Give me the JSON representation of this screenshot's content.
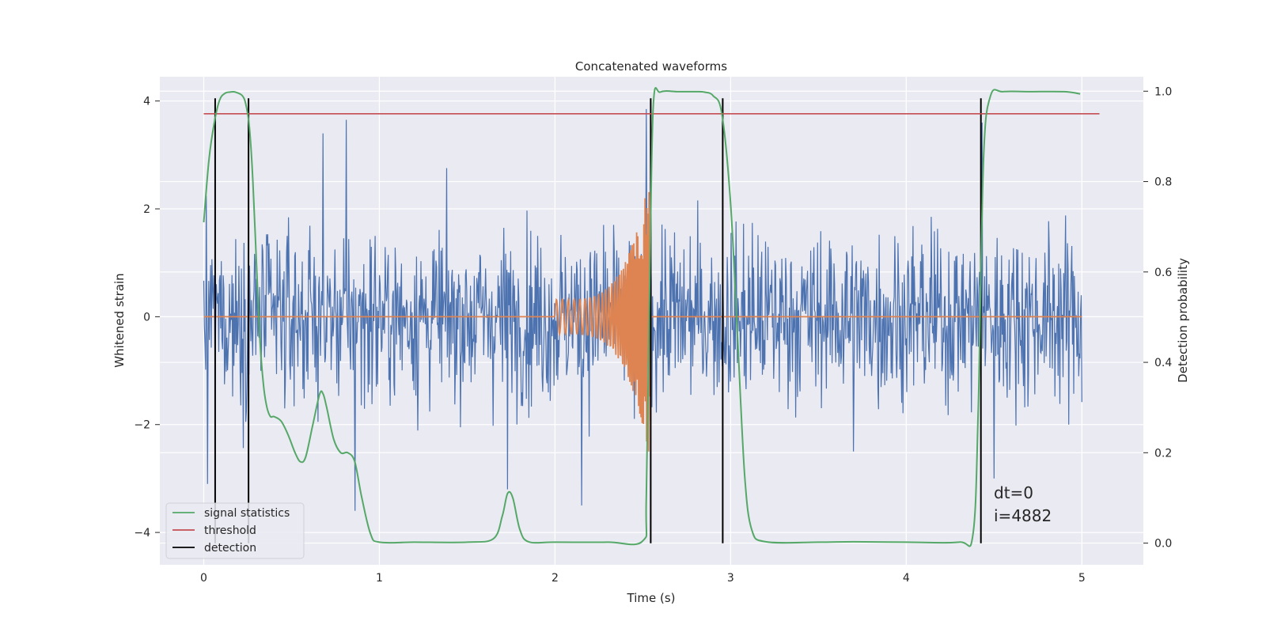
{
  "chart_data": {
    "type": "line",
    "title": "Concatenated waveforms",
    "xlabel": "Time (s)",
    "ylabel": "Whitened strain",
    "y2label": "Detection probability",
    "xlim": [
      -0.25,
      5.35
    ],
    "ylim": [
      -4.6,
      4.45
    ],
    "y2lim": [
      -0.048,
      1.032
    ],
    "xticks": [
      0,
      1,
      2,
      3,
      4,
      5
    ],
    "xtick_labels": [
      "0",
      "1",
      "2",
      "3",
      "4",
      "5"
    ],
    "yticks": [
      -4,
      -2,
      0,
      2,
      4
    ],
    "ytick_labels": [
      "−4",
      "−2",
      "0",
      "2",
      "4"
    ],
    "y2ticks": [
      0.0,
      0.2,
      0.4,
      0.6,
      0.8,
      1.0
    ],
    "y2tick_labels": [
      "0.0",
      "0.2",
      "0.4",
      "0.6",
      "0.8",
      "1.0"
    ],
    "grid": true,
    "legend_position": "lower-left",
    "series": [
      {
        "name": "",
        "kind": "noise",
        "axis": "left",
        "color": "#4c72b0",
        "x_range": [
          0,
          5
        ],
        "envelope": 2.3,
        "peaks": [
          [
            0.81,
            3.65
          ],
          [
            0.68,
            3.4
          ],
          [
            2.52,
            3.85
          ],
          [
            4.43,
            3.6
          ],
          [
            0.02,
            -3.1
          ],
          [
            0.86,
            -3.6
          ],
          [
            2.15,
            -3.5
          ],
          [
            1.73,
            -3.2
          ],
          [
            4.5,
            -3.0
          ],
          [
            3.7,
            -2.5
          ]
        ]
      },
      {
        "name": "",
        "kind": "chirp",
        "axis": "left",
        "color": "#dd8452",
        "x_range": [
          0,
          5
        ],
        "chirp_start": 2.0,
        "chirp_merge": 2.545,
        "chirp_peak": 2.7
      },
      {
        "name": "signal statistics",
        "axis": "right",
        "color": "#55a868",
        "x": [
          0.0,
          0.03,
          0.06,
          0.09,
          0.12,
          0.15,
          0.18,
          0.22,
          0.24,
          0.26,
          0.28,
          0.3,
          0.32,
          0.34,
          0.36,
          0.38,
          0.4,
          0.44,
          0.48,
          0.52,
          0.55,
          0.58,
          0.62,
          0.66,
          0.68,
          0.7,
          0.74,
          0.78,
          0.82,
          0.86,
          0.9,
          0.95,
          1.0,
          1.2,
          1.5,
          1.65,
          1.7,
          1.73,
          1.76,
          1.8,
          1.85,
          2.0,
          2.3,
          2.5,
          2.52,
          2.54,
          2.56,
          2.6,
          2.7,
          2.8,
          2.85,
          2.9,
          2.95,
          3.0,
          3.04,
          3.08,
          3.12,
          3.2,
          3.5,
          3.7,
          4.0,
          4.3,
          4.38,
          4.41,
          4.44,
          4.48,
          4.55,
          4.7,
          4.9,
          4.99
        ],
        "values": [
          0.71,
          0.85,
          0.93,
          0.98,
          0.995,
          0.998,
          0.998,
          0.99,
          0.97,
          0.92,
          0.8,
          0.62,
          0.45,
          0.35,
          0.3,
          0.28,
          0.28,
          0.27,
          0.24,
          0.2,
          0.18,
          0.19,
          0.26,
          0.33,
          0.33,
          0.3,
          0.23,
          0.2,
          0.2,
          0.18,
          0.1,
          0.02,
          0.002,
          0.002,
          0.002,
          0.01,
          0.06,
          0.11,
          0.1,
          0.03,
          0.003,
          0.002,
          0.002,
          0.005,
          0.1,
          0.6,
          0.97,
          0.998,
          0.999,
          0.999,
          0.998,
          0.99,
          0.95,
          0.75,
          0.45,
          0.15,
          0.03,
          0.003,
          0.002,
          0.003,
          0.002,
          0.002,
          0.02,
          0.3,
          0.85,
          0.99,
          0.999,
          0.999,
          0.999,
          0.994
        ],
        "smooth": true
      },
      {
        "name": "threshold",
        "axis": "right",
        "color": "#c44e52",
        "x": [
          0,
          5.1
        ],
        "values": [
          0.95,
          0.95
        ]
      },
      {
        "name": "detection",
        "axis": "left",
        "color": "#000000",
        "vlines": [
          0.065,
          0.255,
          2.545,
          2.955,
          4.425
        ],
        "ymin": -4.2,
        "ymax": 4.05
      }
    ],
    "annotations": [
      "dt=0",
      "i=4882"
    ]
  },
  "colors": {
    "background": "#ffffff",
    "axes_face": "#eaeaf2",
    "grid": "#ffffff",
    "text": "#262626"
  }
}
